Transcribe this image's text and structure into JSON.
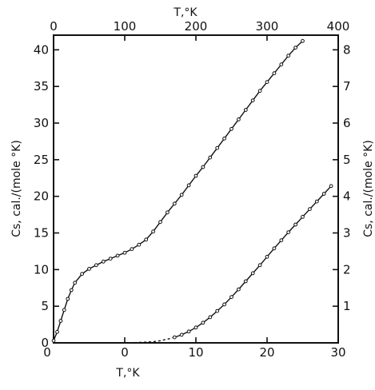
{
  "chart_data": {
    "type": "scatter",
    "grid": false,
    "axes": {
      "top_x": {
        "label": "T,°K",
        "range": [
          0,
          400
        ],
        "ticks": [
          "0",
          "100",
          "200",
          "300",
          "400"
        ]
      },
      "bottom_x": {
        "label": "T,°K",
        "range": [
          -10,
          30
        ],
        "ticks": [
          "0",
          "0",
          "10",
          "20",
          "30"
        ]
      },
      "left_y": {
        "label": "Cs, cal./(mole °K)",
        "range": [
          0,
          42
        ],
        "ticks": [
          "0",
          "5",
          "10",
          "15",
          "20",
          "25",
          "30",
          "35",
          "40"
        ]
      },
      "right_y": {
        "label": "Cs, cal./(mole °K)",
        "range": [
          0,
          8.4
        ],
        "ticks": [
          "1",
          "2",
          "3",
          "4",
          "5",
          "6",
          "7",
          "8"
        ]
      }
    },
    "series": [
      {
        "x_axis": "top",
        "y_axis": "left",
        "x": [
          0,
          5,
          10,
          15,
          20,
          25,
          30,
          40,
          50,
          60,
          70,
          80,
          90,
          100,
          110,
          120,
          130,
          140,
          150,
          160,
          170,
          180,
          190,
          200,
          210,
          220,
          230,
          240,
          250,
          260,
          270,
          280,
          290,
          300,
          310,
          320,
          330,
          340,
          350
        ],
        "y": [
          0.3,
          1.5,
          3.0,
          4.5,
          6.0,
          7.2,
          8.2,
          9.4,
          10.1,
          10.6,
          11.1,
          11.5,
          11.9,
          12.3,
          12.8,
          13.4,
          14.1,
          15.2,
          16.5,
          17.8,
          19.0,
          20.2,
          21.5,
          22.8,
          24.0,
          25.3,
          26.6,
          27.9,
          29.2,
          30.5,
          31.8,
          33.1,
          34.4,
          35.6,
          36.8,
          38.0,
          39.2,
          40.3,
          41.2
        ]
      },
      {
        "x_axis": "bottom",
        "y_axis": "right",
        "x": [
          0,
          2,
          4,
          5,
          6,
          7,
          8,
          9,
          10,
          11,
          12,
          13,
          14,
          15,
          16,
          17,
          18,
          19,
          20,
          21,
          22,
          23,
          24,
          25,
          26,
          27,
          28,
          29
        ],
        "y": [
          0,
          0.01,
          0.03,
          0.06,
          0.1,
          0.15,
          0.22,
          0.31,
          0.42,
          0.55,
          0.7,
          0.87,
          1.05,
          1.25,
          1.46,
          1.68,
          1.9,
          2.12,
          2.35,
          2.58,
          2.8,
          3.02,
          3.23,
          3.44,
          3.65,
          3.86,
          4.07,
          4.28
        ],
        "dashed_below_x": 7
      }
    ]
  }
}
